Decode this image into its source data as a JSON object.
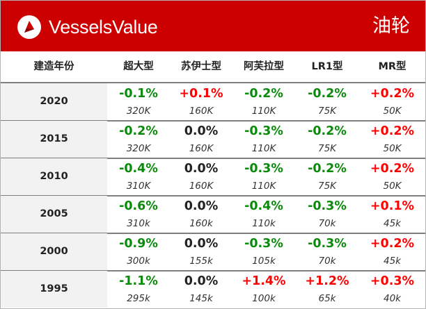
{
  "banner": {
    "brand": "VesselsValue",
    "category": "油轮",
    "color": "#cc0000",
    "logo_icon": "vesselsvalue-logo-icon"
  },
  "table": {
    "year_header": "建造年份",
    "columns": [
      "超大型",
      "苏伊士型",
      "阿芙拉型",
      "LR1型",
      "MR型"
    ],
    "rows": [
      {
        "year": "2020",
        "cells": [
          {
            "change": "-0.1%",
            "value": "320K",
            "trend": "neg"
          },
          {
            "change": "+0.1%",
            "value": "160K",
            "trend": "pos"
          },
          {
            "change": "-0.2%",
            "value": "110K",
            "trend": "neg"
          },
          {
            "change": "-0.2%",
            "value": "75K",
            "trend": "neg"
          },
          {
            "change": "+0.2%",
            "value": "50K",
            "trend": "pos"
          }
        ]
      },
      {
        "year": "2015",
        "cells": [
          {
            "change": "-0.2%",
            "value": "320K",
            "trend": "neg"
          },
          {
            "change": "0.0%",
            "value": "160K",
            "trend": "zero"
          },
          {
            "change": "-0.3%",
            "value": "110K",
            "trend": "neg"
          },
          {
            "change": "-0.2%",
            "value": "75K",
            "trend": "neg"
          },
          {
            "change": "+0.2%",
            "value": "50K",
            "trend": "pos"
          }
        ]
      },
      {
        "year": "2010",
        "cells": [
          {
            "change": "-0.4%",
            "value": "310K",
            "trend": "neg"
          },
          {
            "change": "0.0%",
            "value": "160K",
            "trend": "zero"
          },
          {
            "change": "-0.3%",
            "value": "110K",
            "trend": "neg"
          },
          {
            "change": "-0.2%",
            "value": "75K",
            "trend": "neg"
          },
          {
            "change": "+0.2%",
            "value": "50K",
            "trend": "pos"
          }
        ]
      },
      {
        "year": "2005",
        "cells": [
          {
            "change": "-0.6%",
            "value": "310k",
            "trend": "neg"
          },
          {
            "change": "0.0%",
            "value": "160k",
            "trend": "zero"
          },
          {
            "change": "-0.4%",
            "value": "110k",
            "trend": "neg"
          },
          {
            "change": "-0.3%",
            "value": "70k",
            "trend": "neg"
          },
          {
            "change": "+0.1%",
            "value": "45k",
            "trend": "pos"
          }
        ]
      },
      {
        "year": "2000",
        "cells": [
          {
            "change": "-0.9%",
            "value": "300k",
            "trend": "neg"
          },
          {
            "change": "0.0%",
            "value": "155k",
            "trend": "zero"
          },
          {
            "change": "-0.3%",
            "value": "105k",
            "trend": "neg"
          },
          {
            "change": "-0.3%",
            "value": "70k",
            "trend": "neg"
          },
          {
            "change": "+0.2%",
            "value": "45k",
            "trend": "pos"
          }
        ]
      },
      {
        "year": "1995",
        "cells": [
          {
            "change": "-1.1%",
            "value": "295k",
            "trend": "neg"
          },
          {
            "change": "0.0%",
            "value": "145k",
            "trend": "zero"
          },
          {
            "change": "+1.4%",
            "value": "100k",
            "trend": "pos"
          },
          {
            "change": "+1.2%",
            "value": "65k",
            "trend": "pos"
          },
          {
            "change": "+0.3%",
            "value": "40k",
            "trend": "pos"
          }
        ]
      }
    ],
    "colors": {
      "pos": "#ff0000",
      "neg": "#0a8a0a",
      "zero": "#222222"
    }
  }
}
